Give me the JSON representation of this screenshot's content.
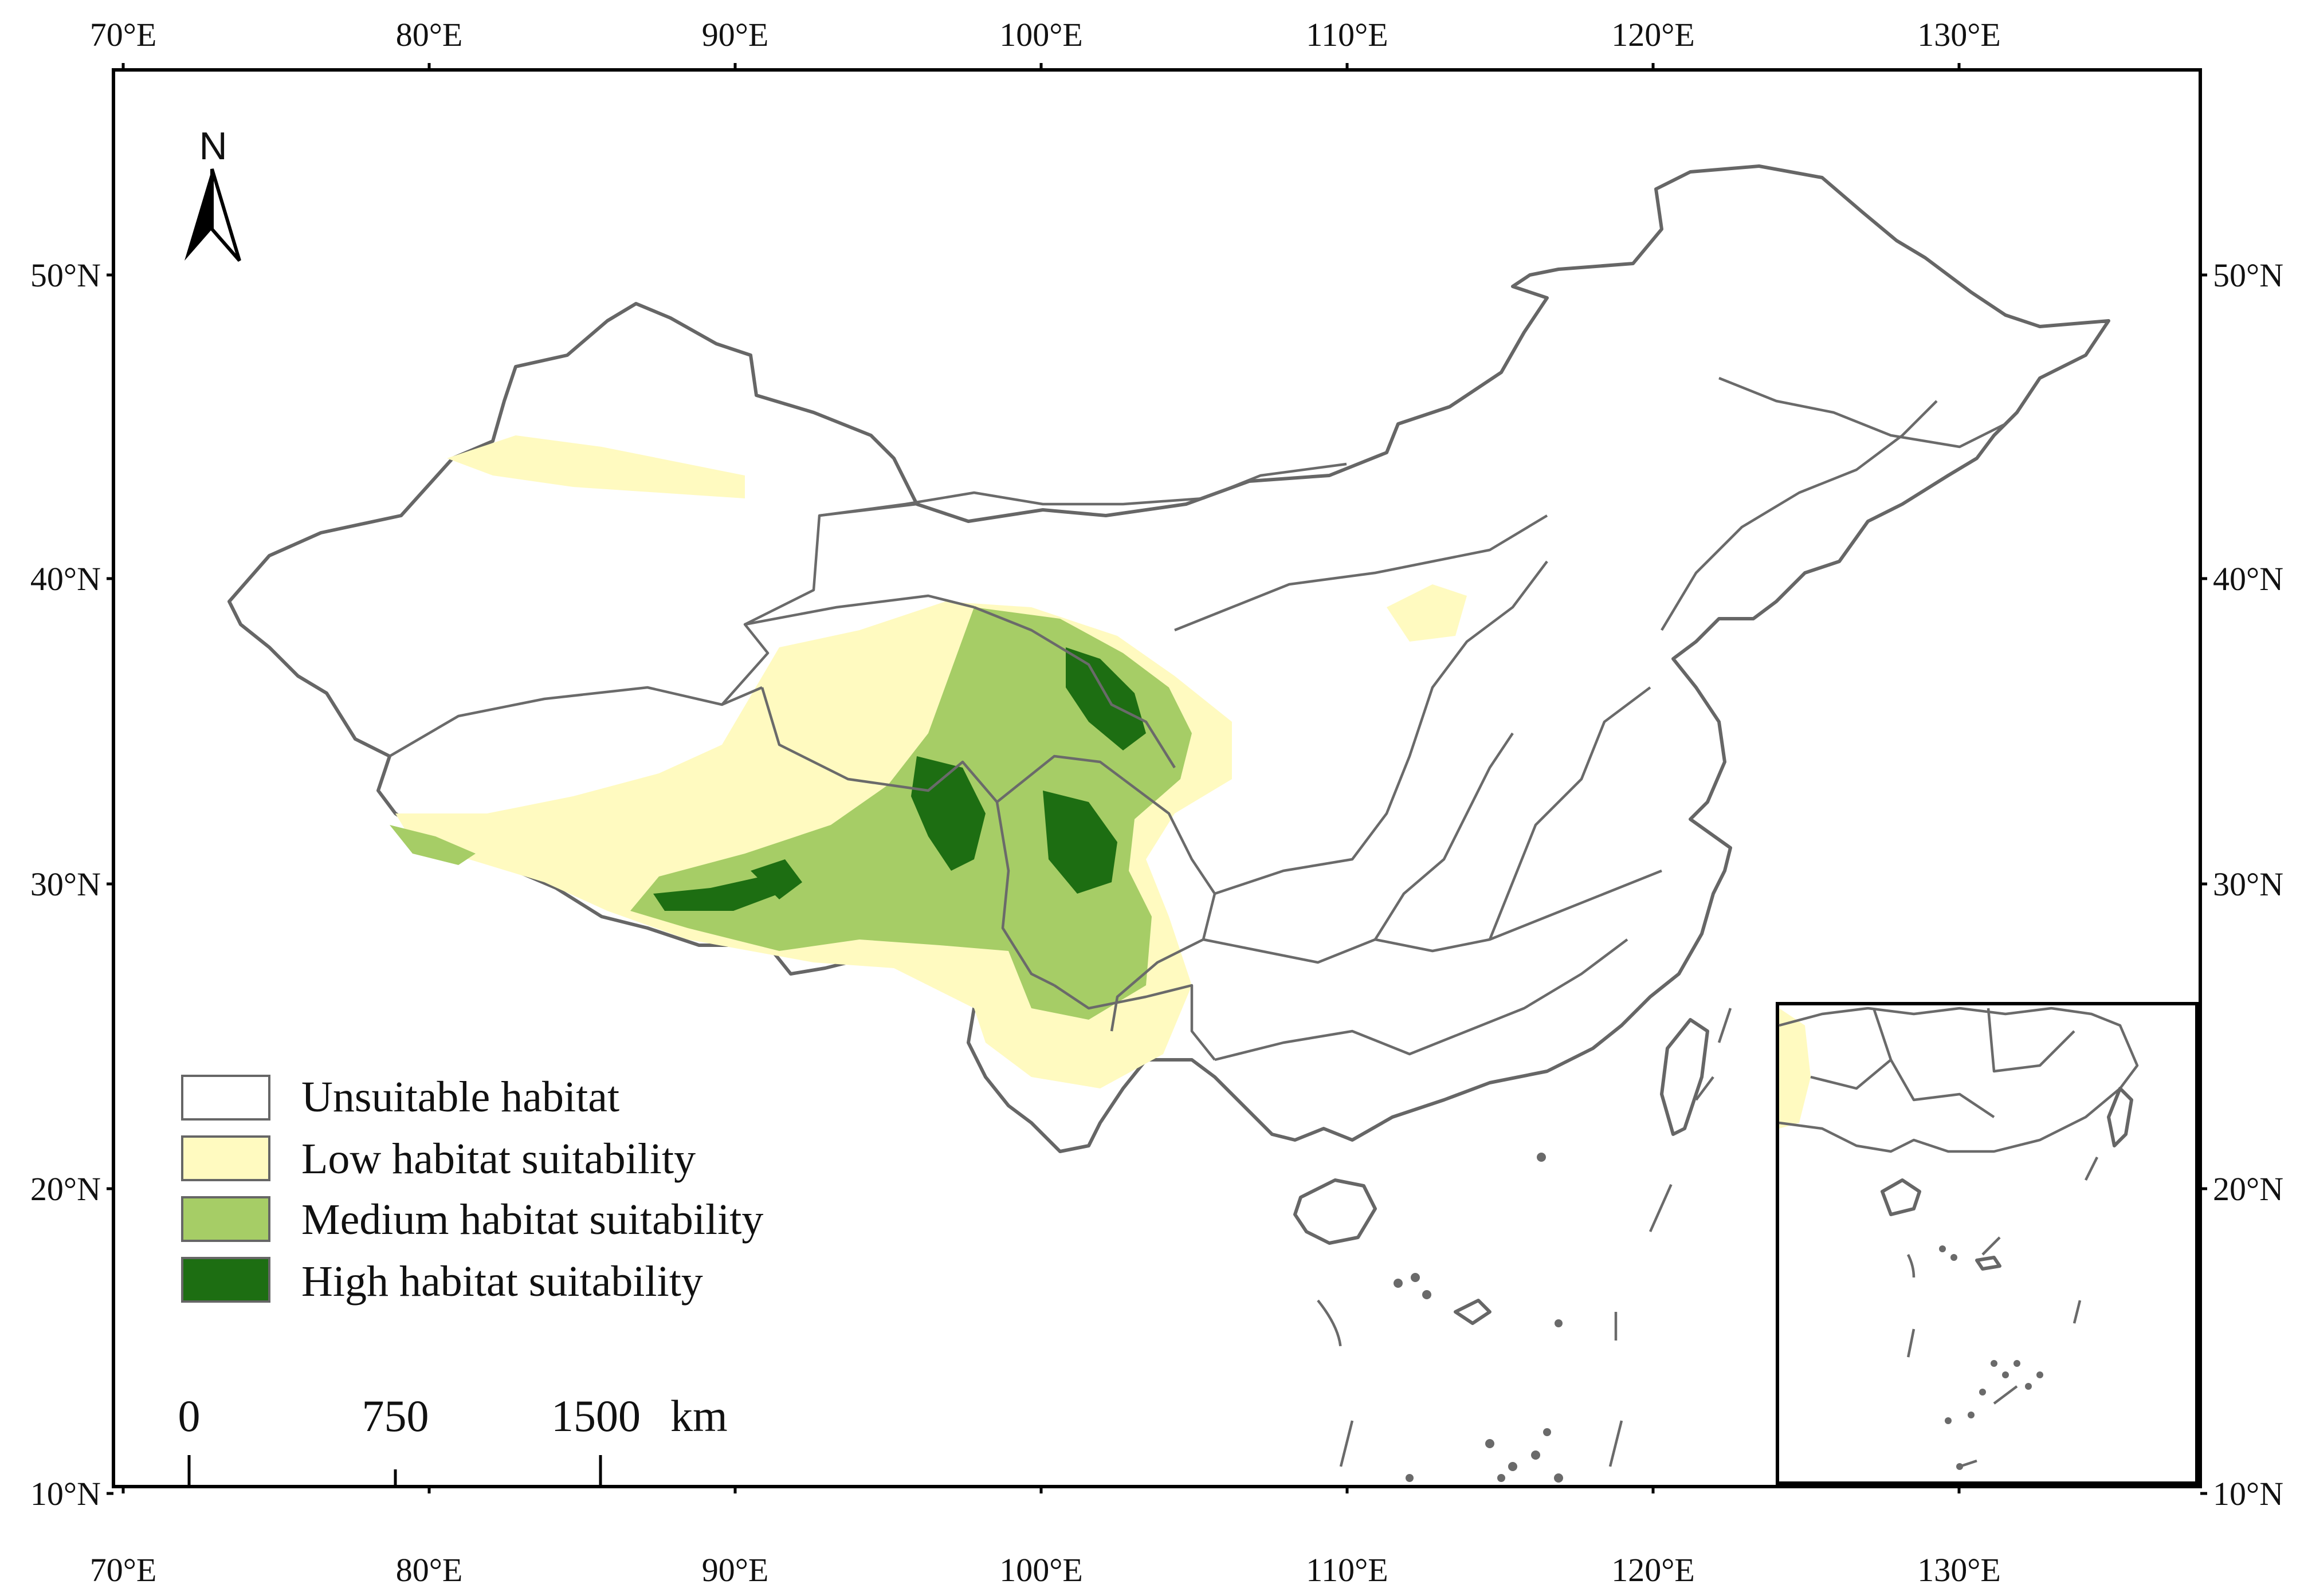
{
  "axes": {
    "longitude_labels": [
      "70°E",
      "80°E",
      "90°E",
      "100°E",
      "110°E",
      "120°E",
      "130°E"
    ],
    "latitude_labels": [
      "50°N",
      "40°N",
      "30°N",
      "20°N",
      "10°N"
    ]
  },
  "north_arrow": {
    "label": "N",
    "icon": "north-arrow-icon"
  },
  "legend": {
    "items": [
      {
        "label": "Unsuitable habitat",
        "color": "#ffffff"
      },
      {
        "label": "Low habitat suitability",
        "color": "#fffac0"
      },
      {
        "label": "Medium habitat suitability",
        "color": "#a6cd66"
      },
      {
        "label": "High habitat suitability",
        "color": "#1d6e12"
      }
    ]
  },
  "scale_bar": {
    "ticks": [
      "0",
      "750",
      "1500"
    ],
    "unit": "km"
  },
  "colors": {
    "unsuitable": "#ffffff",
    "low": "#fffac0",
    "medium": "#a6cd66",
    "high": "#1d6e12",
    "boundary": "#666666",
    "frame": "#000000"
  }
}
